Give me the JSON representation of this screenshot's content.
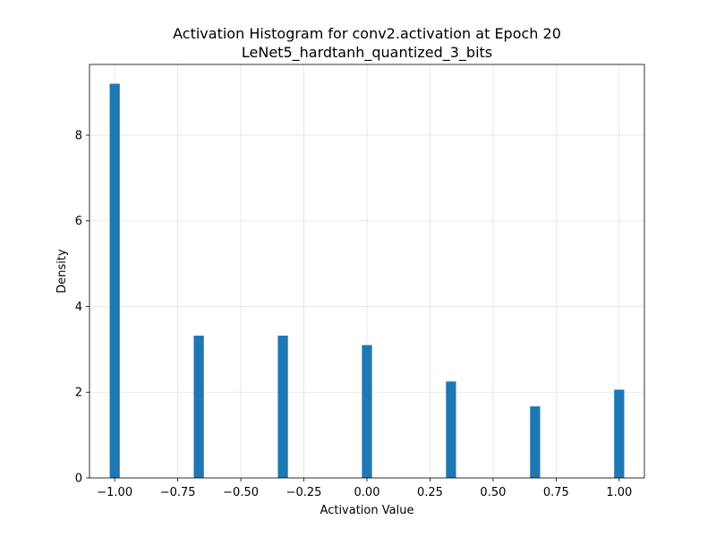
{
  "chart_data": {
    "type": "bar",
    "title": "Activation Histogram for conv2.activation at Epoch 20",
    "subtitle": "LeNet5_hardtanh_quantized_3_bits",
    "xlabel": "Activation Value",
    "ylabel": "Density",
    "xlim": [
      -1.1,
      1.1
    ],
    "ylim": [
      0,
      9.65
    ],
    "xticks": [
      -1.0,
      -0.75,
      -0.5,
      -0.25,
      0.0,
      0.25,
      0.5,
      0.75,
      1.0
    ],
    "xtick_labels": [
      "−1.00",
      "−0.75",
      "−0.50",
      "−0.25",
      "0.00",
      "0.25",
      "0.50",
      "0.75",
      "1.00"
    ],
    "yticks": [
      0,
      2,
      4,
      6,
      8
    ],
    "ytick_labels": [
      "0",
      "2",
      "4",
      "6",
      "8"
    ],
    "grid": true,
    "bar_color": "#1f77b4",
    "bin_width": 0.04,
    "bins": [
      {
        "x": -1.0,
        "density": 9.2
      },
      {
        "x": -0.6667,
        "density": 3.32
      },
      {
        "x": -0.3333,
        "density": 3.32
      },
      {
        "x": 0.0,
        "density": 3.1
      },
      {
        "x": 0.3333,
        "density": 2.25
      },
      {
        "x": 0.6667,
        "density": 1.67
      },
      {
        "x": 1.0,
        "density": 2.06
      }
    ]
  }
}
